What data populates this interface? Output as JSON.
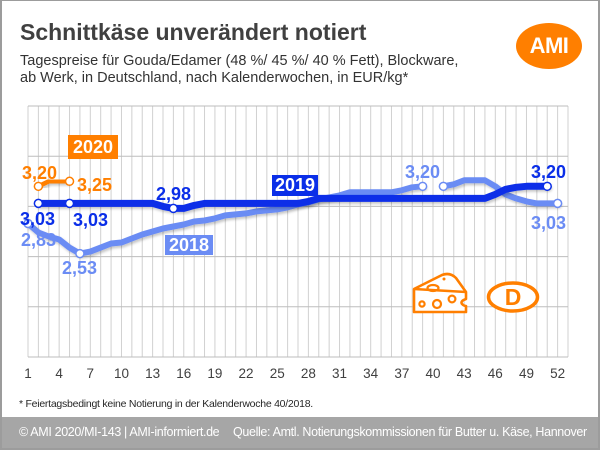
{
  "header": {
    "title": "Schnittkäse unverändert notiert",
    "subtitle_line1": "Tagespreise für Gouda/Edamer (48 %/ 45 %/ 40 % Fett), Blockware,",
    "subtitle_line2": "ab Werk, in Deutschland, nach Kalenderwochen, in EUR/kg*",
    "logo_text": "AMI"
  },
  "brand_color": "#ff7f00",
  "badges": {
    "cheese": "cheese-icon",
    "country_letter": "D"
  },
  "footnote": "* Feiertagsbedingt keine Notierung in der Kalenderwoche 40/2018.",
  "footer": {
    "copyright": "© AMI 2020/MI-143 | AMI-informiert.de",
    "source": "Quelle: Amtl. Notierungskommissionen für Butter u. Käse, Hannover"
  },
  "chart_data": {
    "type": "line",
    "title": "Schnittkäse unverändert notiert",
    "subtitle": "Tagespreise für Gouda/Edamer (48 %/ 45 %/ 40 % Fett), Blockware, ab Werk, in Deutschland, nach Kalenderwochen, in EUR/kg*",
    "xlabel": "",
    "ylabel": "",
    "unit": "EUR/kg",
    "x": [
      1,
      2,
      3,
      4,
      5,
      6,
      7,
      8,
      9,
      10,
      11,
      12,
      13,
      14,
      15,
      16,
      17,
      18,
      19,
      20,
      21,
      22,
      23,
      24,
      25,
      26,
      27,
      28,
      29,
      30,
      31,
      32,
      33,
      34,
      35,
      36,
      37,
      38,
      39,
      40,
      41,
      42,
      43,
      44,
      45,
      46,
      47,
      48,
      49,
      50,
      51,
      52
    ],
    "xlim": [
      1,
      53
    ],
    "x_ticks": [
      1,
      4,
      7,
      10,
      13,
      16,
      19,
      22,
      25,
      28,
      31,
      34,
      37,
      40,
      43,
      46,
      49,
      52
    ],
    "ylim": [
      1.5,
      4.0
    ],
    "y_grid_step": 0.5,
    "grid": true,
    "legend": "inline year labels",
    "series": [
      {
        "name": "2018",
        "color": "#6b8cf4",
        "values": [
          2.83,
          2.74,
          2.7,
          2.67,
          2.59,
          2.53,
          2.55,
          2.59,
          2.63,
          2.64,
          2.68,
          2.72,
          2.75,
          2.78,
          2.8,
          2.82,
          2.85,
          2.86,
          2.88,
          2.91,
          2.92,
          2.93,
          2.95,
          2.96,
          2.97,
          2.99,
          3.02,
          3.04,
          3.07,
          3.09,
          3.11,
          3.14,
          3.14,
          3.14,
          3.14,
          3.14,
          3.16,
          3.19,
          3.2,
          null,
          3.2,
          3.22,
          3.26,
          3.26,
          3.26,
          3.2,
          3.12,
          3.08,
          3.05,
          3.03,
          3.03,
          3.03
        ],
        "markers": [
          1,
          6,
          39,
          41,
          52
        ]
      },
      {
        "name": "2019",
        "color": "#0a2ee8",
        "values": [
          null,
          3.03,
          3.03,
          3.03,
          3.03,
          3.03,
          3.03,
          3.03,
          3.03,
          3.03,
          3.03,
          3.03,
          3.03,
          3.0,
          2.98,
          2.98,
          3.01,
          3.03,
          3.03,
          3.03,
          3.03,
          3.03,
          3.03,
          3.03,
          3.03,
          3.03,
          3.03,
          3.05,
          3.08,
          3.08,
          3.08,
          3.08,
          3.08,
          3.08,
          3.08,
          3.08,
          3.08,
          3.08,
          3.08,
          3.08,
          3.08,
          3.08,
          3.08,
          3.08,
          3.08,
          3.12,
          3.17,
          3.19,
          3.2,
          3.2,
          3.2,
          null
        ],
        "markers": [
          2,
          5,
          15,
          51
        ]
      },
      {
        "name": "2020",
        "color": "#ff7f00",
        "values": [
          null,
          3.2,
          3.25,
          3.25,
          3.25,
          null,
          null,
          null,
          null,
          null,
          null,
          null,
          null,
          null,
          null,
          null,
          null,
          null,
          null,
          null,
          null,
          null,
          null,
          null,
          null,
          null,
          null,
          null,
          null,
          null,
          null,
          null,
          null,
          null,
          null,
          null,
          null,
          null,
          null,
          null,
          null,
          null,
          null,
          null,
          null,
          null,
          null,
          null,
          null,
          null,
          null,
          null
        ],
        "markers": [
          2,
          5
        ]
      }
    ],
    "annotations": [
      {
        "series": "2020",
        "week": 2,
        "value": 3.2,
        "text": "3,20"
      },
      {
        "series": "2020",
        "week": 5,
        "value": 3.25,
        "text": "3,25"
      },
      {
        "series": "2019",
        "week": 2,
        "value": 3.03,
        "text": "3,03"
      },
      {
        "series": "2019",
        "week": 5,
        "value": 3.03,
        "text": "3,03"
      },
      {
        "series": "2019",
        "week": 15,
        "value": 2.98,
        "text": "2,98"
      },
      {
        "series": "2019",
        "week": 51,
        "value": 3.2,
        "text": "3,20"
      },
      {
        "series": "2018",
        "week": 1,
        "value": 2.83,
        "text": "2,83"
      },
      {
        "series": "2018",
        "week": 6,
        "value": 2.53,
        "text": "2,53"
      },
      {
        "series": "2018",
        "week": 39,
        "value": 3.2,
        "text": "3,20"
      },
      {
        "series": "2018",
        "week": 52,
        "value": 3.03,
        "text": "3,03"
      }
    ],
    "footnote": "* Feiertagsbedingt keine Notierung in der Kalenderwoche 40/2018."
  }
}
